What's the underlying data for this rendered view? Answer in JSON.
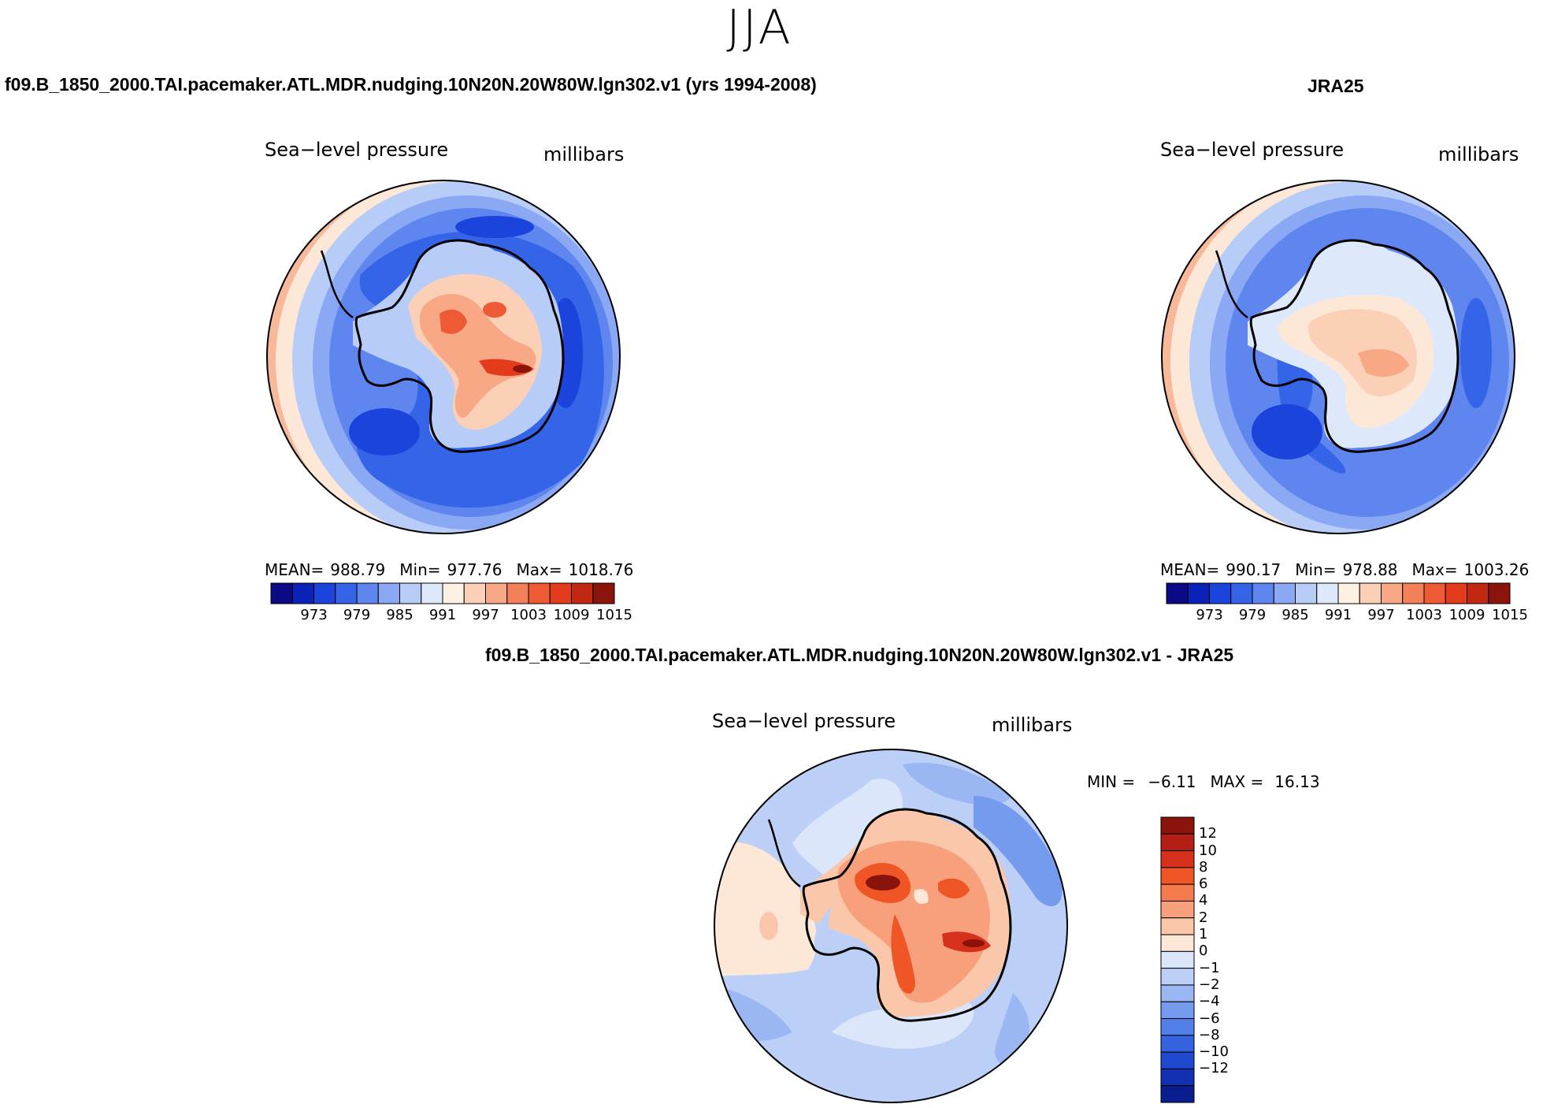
{
  "figure": {
    "season": "JJA",
    "variable": "Sea−level pressure",
    "units": "millibars"
  },
  "colors": {
    "ocean_deep": "#2f5fe0",
    "ocean_mid": "#5f86ee",
    "ocean_light": "#a9c3f7",
    "near_zero": "#fde8d8",
    "warm_mid": "#f3a07a",
    "warm_high": "#e2502a",
    "warm_max": "#9e1a12",
    "coast": "#000000"
  },
  "panels": [
    {
      "id": "model",
      "title": "f09.B_1850_2000.TAI.pacemaker.ATL.MDR.nudging.10N20N.20W80W.lgn302.v1 (yrs 1994-2008)",
      "subtitle": "Sea−level pressure",
      "units": "millibars",
      "stats": {
        "mean_label": "MEAN=",
        "mean": "988.79",
        "min_label": "Min=",
        "min": "977.76",
        "max_label": "Max=",
        "max": "1018.76"
      }
    },
    {
      "id": "obs",
      "title": "JRA25",
      "subtitle": "Sea−level pressure",
      "units": "millibars",
      "stats": {
        "mean_label": "MEAN=",
        "mean": "990.17",
        "min_label": "Min=",
        "min": "978.88",
        "max_label": "Max=",
        "max": "1003.26"
      }
    },
    {
      "id": "diff",
      "title": "f09.B_1850_2000.TAI.pacemaker.ATL.MDR.nudging.10N20N.20W80W.lgn302.v1 - JRA25",
      "subtitle": "Sea−level pressure",
      "units": "millibars",
      "stats": {
        "min_label": "MIN =",
        "min": "−6.11",
        "max_label": "MAX =",
        "max": "16.13"
      }
    }
  ],
  "legend_abs": {
    "colors": [
      "#0a0a86",
      "#0b22b8",
      "#1a44dc",
      "#3464e8",
      "#5f86ee",
      "#8aa8f3",
      "#b7cdf8",
      "#dde8fb",
      "#fff0e4",
      "#fcd0b6",
      "#f8a884",
      "#f4805a",
      "#ee5a33",
      "#e43b1c",
      "#c22712",
      "#8a130c"
    ],
    "ticks": [
      "973",
      "979",
      "985",
      "991",
      "997",
      "1003",
      "1009",
      "1015"
    ]
  },
  "legend_diff": {
    "colors": [
      "#8a130c",
      "#b31f14",
      "#d6311a",
      "#f05525",
      "#f57a4e",
      "#f8a07b",
      "#fbc7aa",
      "#fde8d8",
      "#dbe6fa",
      "#bcd0f7",
      "#9ab7f3",
      "#759bee",
      "#527fe8",
      "#3563df",
      "#1f49cf",
      "#1131b2",
      "#0a1d8e"
    ],
    "ticks": [
      "12",
      "10",
      "8",
      "6",
      "4",
      "2",
      "1",
      "0",
      "−1",
      "−2",
      "−4",
      "−6",
      "−8",
      "−10",
      "−12"
    ]
  }
}
